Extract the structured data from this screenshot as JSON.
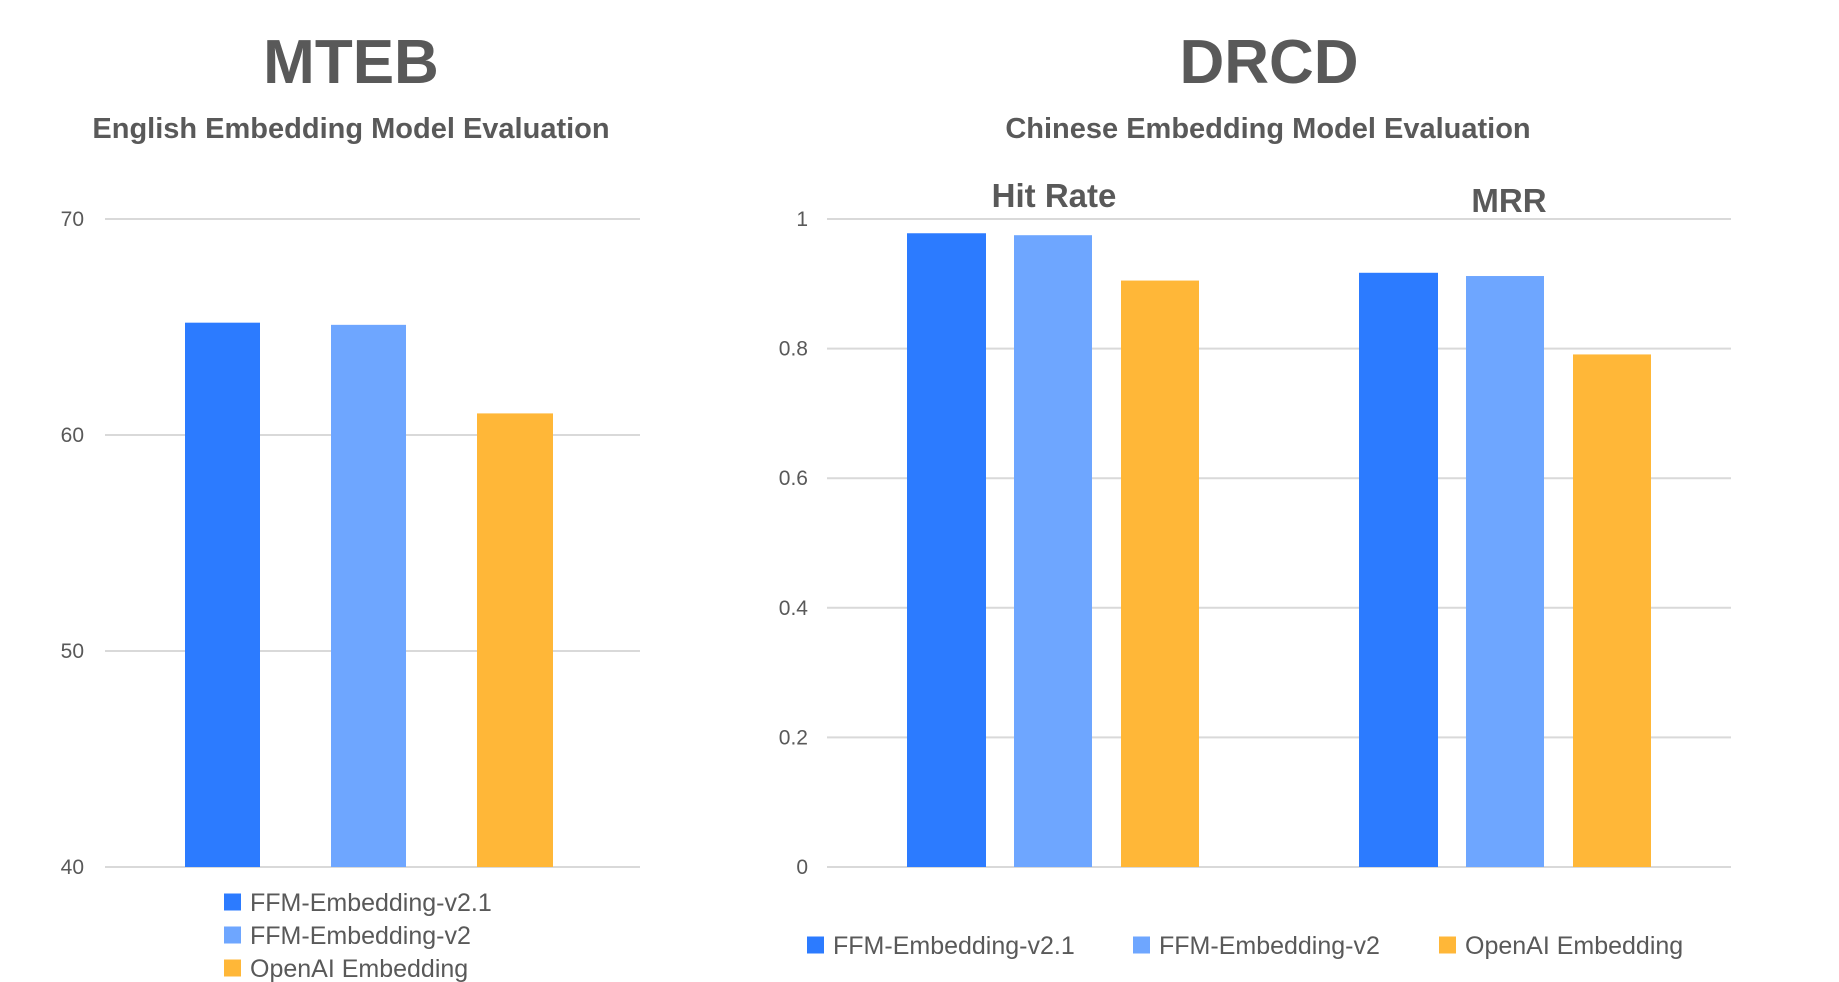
{
  "colors": {
    "ffm_v21": "#2c7bff",
    "ffm_v2": "#6ea6ff",
    "openai": "#ffb738",
    "grid": "#d9d9d9",
    "text": "#595959"
  },
  "chart_data": [
    {
      "id": "mteb",
      "type": "bar",
      "title": "MTEB",
      "subtitle": "English Embedding Model Evaluation",
      "categories": [
        "FFM-Embedding-v2.1",
        "FFM-Embedding-v2",
        "OpenAI Embedding"
      ],
      "series": [
        {
          "name": "FFM-Embedding-v2.1",
          "color_key": "ffm_v21",
          "values": [
            65.2
          ]
        },
        {
          "name": "FFM-Embedding-v2",
          "color_key": "ffm_v2",
          "values": [
            65.1
          ]
        },
        {
          "name": "OpenAI Embedding",
          "color_key": "openai",
          "values": [
            61.0
          ]
        }
      ],
      "xlabel": "",
      "ylabel": "",
      "ylim": [
        40,
        70
      ],
      "yticks": [
        "40",
        "50",
        "60",
        "70"
      ],
      "ytick_values": [
        40,
        50,
        60,
        70
      ],
      "grid": true,
      "legend": {
        "placement": "bottom",
        "orientation": "vertical",
        "entries": [
          "FFM-Embedding-v2.1",
          "FFM-Embedding-v2",
          "OpenAI Embedding"
        ]
      }
    },
    {
      "id": "drcd",
      "type": "bar",
      "title": "DRCD",
      "subtitle": "Chinese Embedding Model Evaluation",
      "categories": [
        "Hit Rate",
        "MRR"
      ],
      "series": [
        {
          "name": "FFM-Embedding-v2.1",
          "color_key": "ffm_v21",
          "values": [
            0.978,
            0.917
          ]
        },
        {
          "name": "FFM-Embedding-v2",
          "color_key": "ffm_v2",
          "values": [
            0.975,
            0.912
          ]
        },
        {
          "name": "OpenAI Embedding",
          "color_key": "openai",
          "values": [
            0.905,
            0.791
          ]
        }
      ],
      "xlabel": "",
      "ylabel": "",
      "ylim": [
        0,
        1
      ],
      "yticks": [
        "0",
        "0.2",
        "0.4",
        "0.6",
        "0.8",
        "1"
      ],
      "ytick_values": [
        0,
        0.2,
        0.4,
        0.6,
        0.8,
        1
      ],
      "grid": true,
      "category_label_placement": "top",
      "legend": {
        "placement": "bottom",
        "orientation": "horizontal",
        "entries": [
          "FFM-Embedding-v2.1",
          "FFM-Embedding-v2",
          "OpenAI Embedding"
        ]
      }
    }
  ]
}
